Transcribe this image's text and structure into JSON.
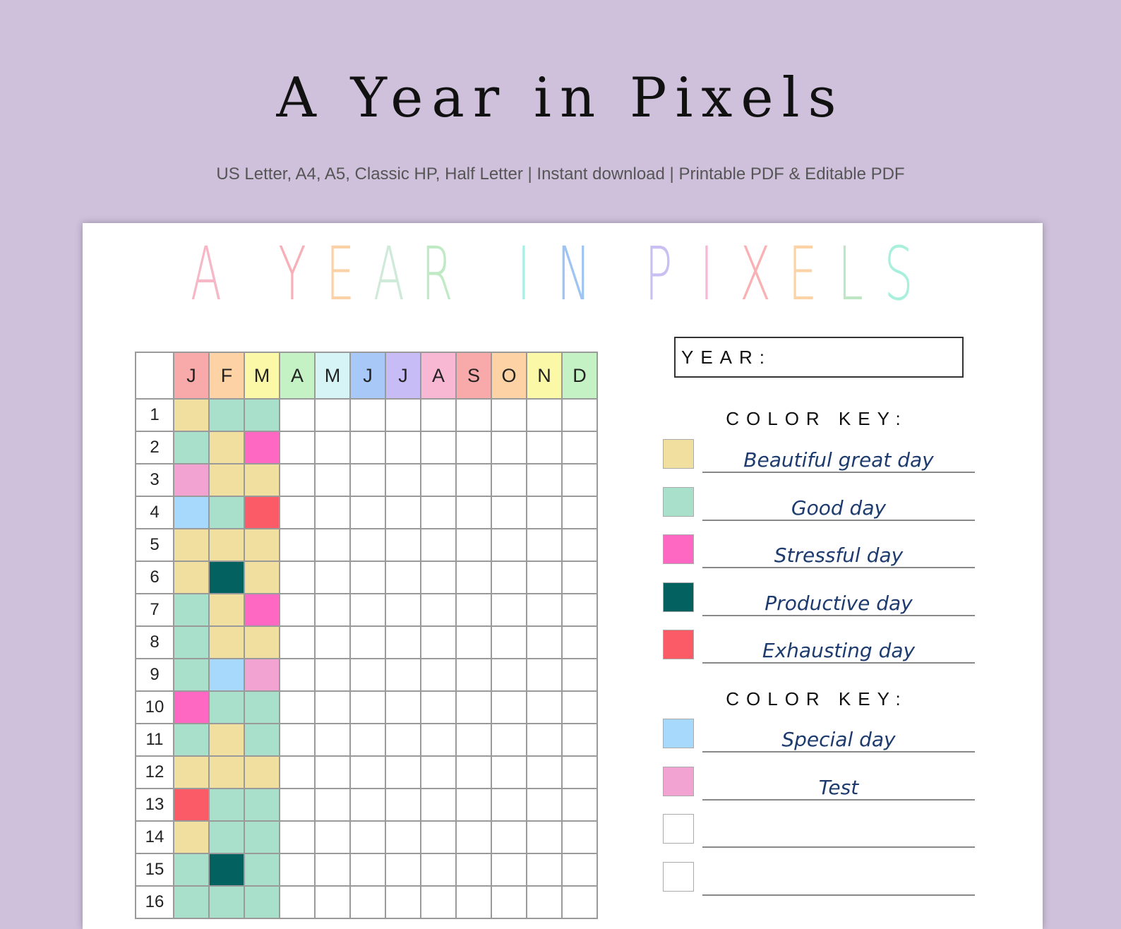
{
  "header": {
    "title": "A Year in Pixels",
    "subtitle": "US Letter, A4, A5,  Classic HP, Half Letter | Instant download | Printable PDF & Editable PDF"
  },
  "sheet": {
    "title_words": [
      [
        {
          "ch": "A",
          "color": "#f6b7c6"
        }
      ],
      [
        {
          "ch": "Y",
          "color": "#f8b0b8"
        },
        {
          "ch": "E",
          "color": "#fbd2a8"
        },
        {
          "ch": "A",
          "color": "#cfead9"
        },
        {
          "ch": "R",
          "color": "#bfeac4"
        }
      ],
      [
        {
          "ch": "I",
          "color": "#a6f0e6"
        },
        {
          "ch": "N",
          "color": "#9ec4f2"
        }
      ],
      [
        {
          "ch": "P",
          "color": "#c9bff2"
        },
        {
          "ch": "I",
          "color": "#f6b8d6"
        },
        {
          "ch": "X",
          "color": "#f9b2b4"
        },
        {
          "ch": "E",
          "color": "#fbd3a6"
        },
        {
          "ch": "L",
          "color": "#bfe6c4"
        },
        {
          "ch": "S",
          "color": "#a8f0dc"
        }
      ]
    ],
    "months": [
      {
        "label": "J",
        "color": "#f8a9a9"
      },
      {
        "label": "F",
        "color": "#fdd2a4"
      },
      {
        "label": "M",
        "color": "#fbf8a8"
      },
      {
        "label": "A",
        "color": "#c4f2c4"
      },
      {
        "label": "M",
        "color": "#d6f4f6"
      },
      {
        "label": "J",
        "color": "#a8c8f8"
      },
      {
        "label": "J",
        "color": "#c8bcf6"
      },
      {
        "label": "A",
        "color": "#f8b8d4"
      },
      {
        "label": "S",
        "color": "#f8a9a9"
      },
      {
        "label": "O",
        "color": "#fdd2a4"
      },
      {
        "label": "N",
        "color": "#fbf8a8"
      },
      {
        "label": "D",
        "color": "#c4f2c4"
      }
    ],
    "days": [
      "1",
      "2",
      "3",
      "4",
      "5",
      "6",
      "7",
      "8",
      "9",
      "10",
      "11",
      "12",
      "13",
      "14",
      "15",
      "16"
    ],
    "mood_colors": {
      "G": "#f1df9f",
      "T": "#a8e0cc",
      "S": "#fe68c2",
      "P": "#03625f",
      "E": "#fb5a67",
      "B": "#a7d9fc",
      "K": "#f2a3d1"
    },
    "cells": [
      [
        "G",
        "T",
        "T"
      ],
      [
        "T",
        "G",
        "S"
      ],
      [
        "K",
        "G",
        "G"
      ],
      [
        "B",
        "T",
        "E"
      ],
      [
        "G",
        "G",
        "G"
      ],
      [
        "G",
        "P",
        "G"
      ],
      [
        "T",
        "G",
        "S"
      ],
      [
        "T",
        "G",
        "G"
      ],
      [
        "T",
        "B",
        "K"
      ],
      [
        "S",
        "T",
        "T"
      ],
      [
        "T",
        "G",
        "T"
      ],
      [
        "G",
        "G",
        "G"
      ],
      [
        "E",
        "T",
        "T"
      ],
      [
        "G",
        "T",
        "T"
      ],
      [
        "T",
        "P",
        "T"
      ],
      [
        "T",
        "T",
        "T"
      ]
    ],
    "year_label": "YEAR:",
    "color_key_heading": "COLOR KEY:",
    "key_section_1": [
      {
        "label": "Beautiful great day",
        "color": "#f1df9f"
      },
      {
        "label": "Good day",
        "color": "#a8e0cc"
      },
      {
        "label": "Stressful day",
        "color": "#fe68c2"
      },
      {
        "label": "Productive day",
        "color": "#03625f"
      },
      {
        "label": "Exhausting day",
        "color": "#fb5a67"
      }
    ],
    "key_section_2": [
      {
        "label": "Special day",
        "color": "#a7d9fc"
      },
      {
        "label": "Test",
        "color": "#f2a3d1"
      },
      {
        "label": "",
        "color": "#ffffff"
      },
      {
        "label": "",
        "color": "#ffffff"
      }
    ]
  }
}
